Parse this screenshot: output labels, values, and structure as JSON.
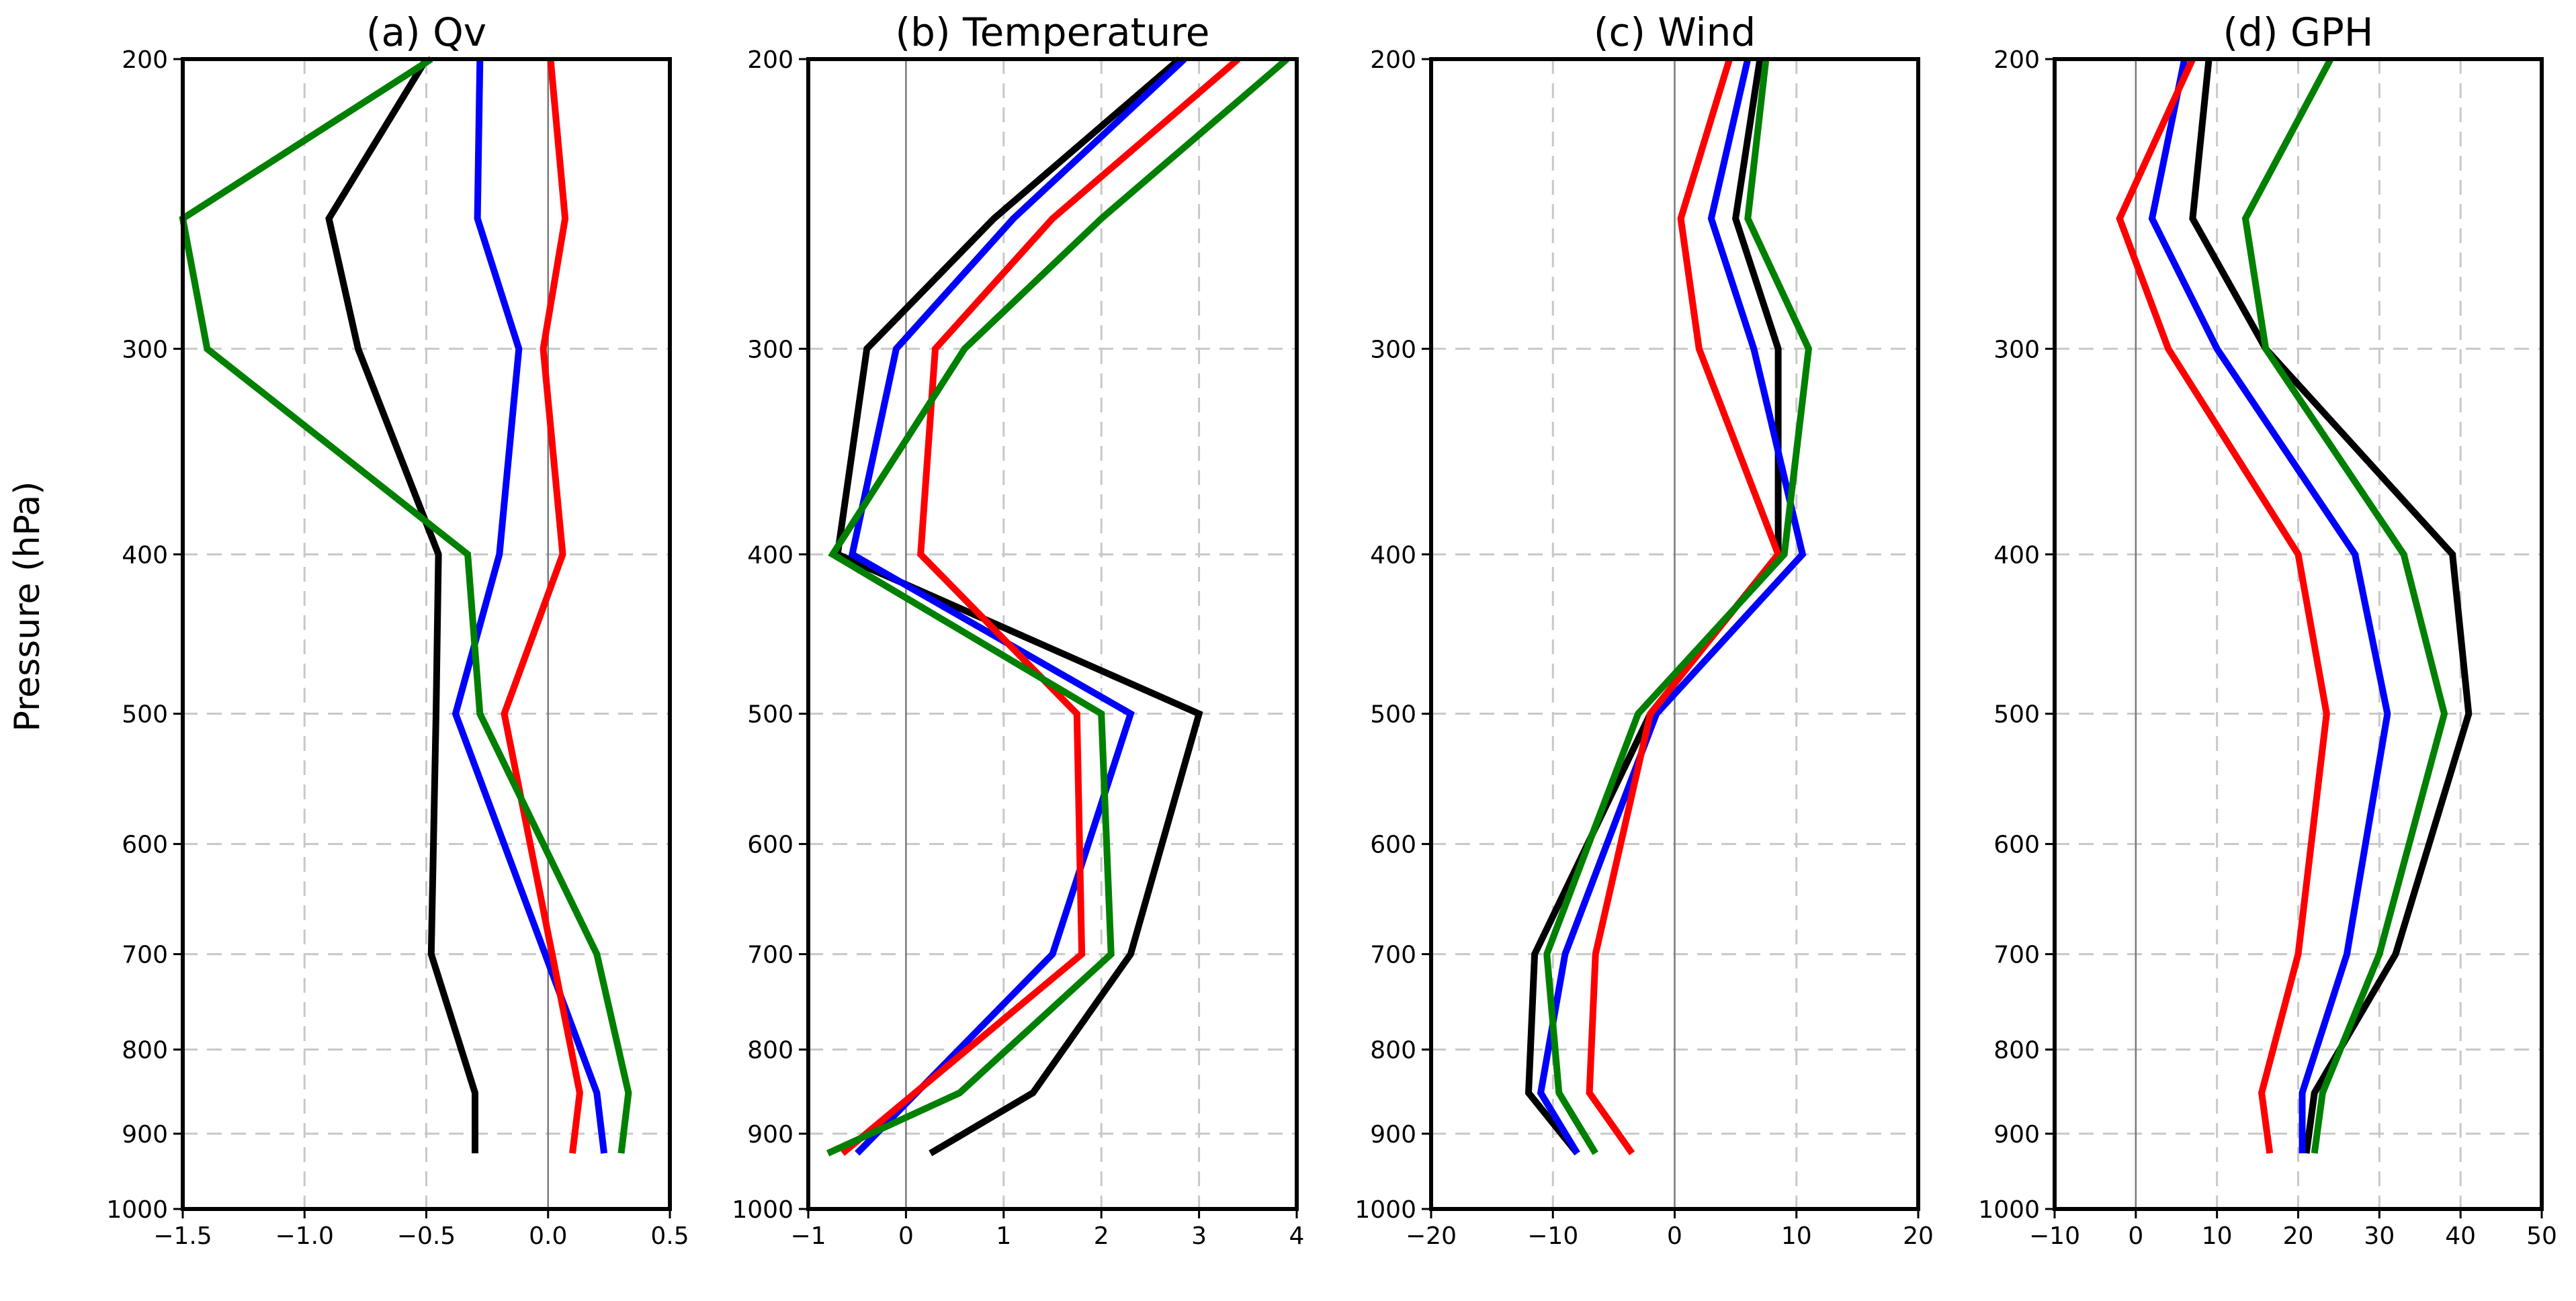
{
  "figure": {
    "ylabel": "Pressure (hPa)"
  },
  "series_colors": [
    "#000000",
    "#0000ff",
    "#ff0000",
    "#008000"
  ],
  "chart_data": [
    {
      "type": "line",
      "title": "(a) Qv",
      "xlabel": "",
      "ylabel": "Pressure (hPa)",
      "xlim": [
        -1.5,
        0.5
      ],
      "ylim": [
        200,
        1000
      ],
      "y_scale": "log",
      "y_inverted": true,
      "xticks": [
        -1.5,
        -1.0,
        -0.5,
        0.0,
        0.5
      ],
      "xtick_labels": [
        "−1.5",
        "−1.0",
        "−0.5",
        "0.0",
        "0.5"
      ],
      "yticks": [
        200,
        300,
        400,
        500,
        600,
        700,
        800,
        900,
        1000
      ],
      "zero_line": 0,
      "grid": true,
      "series": [
        {
          "name": "black",
          "color": "#000000",
          "x": [
            -0.5,
            -0.9,
            -0.78,
            -0.45,
            -0.46,
            -0.48,
            -0.3,
            -0.3
          ],
          "y": [
            200,
            250,
            300,
            400,
            500,
            700,
            850,
            925
          ]
        },
        {
          "name": "blue",
          "color": "#0000ff",
          "x": [
            -0.28,
            -0.29,
            -0.12,
            -0.2,
            -0.38,
            0.2,
            0.23
          ],
          "y": [
            200,
            250,
            300,
            400,
            500,
            850,
            925
          ]
        },
        {
          "name": "red",
          "color": "#ff0000",
          "x": [
            0.01,
            0.07,
            -0.02,
            0.06,
            -0.18,
            0.13,
            0.1
          ],
          "y": [
            200,
            250,
            300,
            400,
            500,
            850,
            925
          ]
        },
        {
          "name": "green",
          "color": "#008000",
          "x": [
            -0.48,
            -1.5,
            -1.4,
            -0.33,
            -0.28,
            0.2,
            0.33,
            0.3
          ],
          "y": [
            200,
            250,
            300,
            400,
            500,
            700,
            850,
            925
          ]
        }
      ]
    },
    {
      "type": "line",
      "title": "(b) Temperature",
      "xlabel": "",
      "xlim": [
        -1,
        4
      ],
      "ylim": [
        200,
        1000
      ],
      "y_scale": "log",
      "y_inverted": true,
      "xticks": [
        -1,
        0,
        1,
        2,
        3,
        4
      ],
      "xtick_labels": [
        "−1",
        "0",
        "1",
        "2",
        "3",
        "4"
      ],
      "yticks": [
        200,
        300,
        400,
        500,
        600,
        700,
        800,
        900,
        1000
      ],
      "zero_line": 0,
      "grid": true,
      "series": [
        {
          "name": "black",
          "color": "#000000",
          "x": [
            2.8,
            0.9,
            -0.4,
            -0.7,
            3.0,
            2.3,
            1.3,
            0.25
          ],
          "y": [
            200,
            250,
            300,
            400,
            500,
            700,
            850,
            925
          ]
        },
        {
          "name": "blue",
          "color": "#0000ff",
          "x": [
            2.85,
            1.1,
            -0.1,
            -0.55,
            2.3,
            1.5,
            -0.5
          ],
          "y": [
            200,
            250,
            300,
            400,
            500,
            700,
            925
          ]
        },
        {
          "name": "red",
          "color": "#ff0000",
          "x": [
            3.4,
            1.5,
            0.3,
            0.15,
            1.75,
            1.8,
            -0.65
          ],
          "y": [
            200,
            250,
            300,
            400,
            500,
            700,
            925
          ]
        },
        {
          "name": "green",
          "color": "#008000",
          "x": [
            3.9,
            2.0,
            0.6,
            -0.75,
            2.0,
            2.1,
            0.55,
            -0.8
          ],
          "y": [
            200,
            250,
            300,
            400,
            500,
            700,
            850,
            925
          ]
        }
      ]
    },
    {
      "type": "line",
      "title": "(c) Wind",
      "xlabel": "",
      "xlim": [
        -20,
        20
      ],
      "ylim": [
        200,
        1000
      ],
      "y_scale": "log",
      "y_inverted": true,
      "xticks": [
        -20,
        -10,
        0,
        10,
        20
      ],
      "xtick_labels": [
        "−20",
        "−10",
        "0",
        "10",
        "20"
      ],
      "yticks": [
        200,
        300,
        400,
        500,
        600,
        700,
        800,
        900,
        1000
      ],
      "zero_line": 0,
      "grid": true,
      "series": [
        {
          "name": "black",
          "color": "#000000",
          "x": [
            7.0,
            5.0,
            8.5,
            8.5,
            -2.0,
            -11.5,
            -12.0,
            -8.0
          ],
          "y": [
            200,
            250,
            300,
            400,
            500,
            700,
            850,
            925
          ]
        },
        {
          "name": "blue",
          "color": "#0000ff",
          "x": [
            6.0,
            3.0,
            6.5,
            10.5,
            -1.5,
            -9.0,
            -11.0,
            -8.0
          ],
          "y": [
            200,
            250,
            300,
            400,
            500,
            700,
            850,
            925
          ]
        },
        {
          "name": "red",
          "color": "#ff0000",
          "x": [
            4.5,
            0.5,
            2.0,
            8.5,
            -2.0,
            -6.5,
            -7.0,
            -3.5
          ],
          "y": [
            200,
            250,
            300,
            400,
            500,
            700,
            850,
            925
          ]
        },
        {
          "name": "green",
          "color": "#008000",
          "x": [
            7.5,
            6.0,
            11.0,
            9.0,
            -3.0,
            -10.5,
            -9.5,
            -6.5
          ],
          "y": [
            200,
            250,
            300,
            400,
            500,
            700,
            850,
            925
          ]
        }
      ]
    },
    {
      "type": "line",
      "title": "(d) GPH",
      "xlabel": "",
      "xlim": [
        -10,
        50
      ],
      "ylim": [
        200,
        1000
      ],
      "y_scale": "log",
      "y_inverted": true,
      "xticks": [
        -10,
        0,
        10,
        20,
        30,
        40,
        50
      ],
      "xtick_labels": [
        "−10",
        "0",
        "10",
        "20",
        "30",
        "40",
        "50"
      ],
      "yticks": [
        200,
        300,
        400,
        500,
        600,
        700,
        800,
        900,
        1000
      ],
      "zero_line": 0,
      "grid": true,
      "series": [
        {
          "name": "black",
          "color": "#000000",
          "x": [
            9.0,
            7.0,
            16.0,
            39.0,
            41.0,
            32.0,
            22.0,
            21.0
          ],
          "y": [
            200,
            250,
            300,
            400,
            500,
            700,
            850,
            925
          ]
        },
        {
          "name": "blue",
          "color": "#0000ff",
          "x": [
            6.0,
            2.0,
            10.0,
            27.0,
            31.0,
            26.0,
            20.5,
            20.5
          ],
          "y": [
            200,
            250,
            300,
            400,
            500,
            700,
            850,
            925
          ]
        },
        {
          "name": "red",
          "color": "#ff0000",
          "x": [
            7.0,
            -2.0,
            4.0,
            20.0,
            23.5,
            20.0,
            15.5,
            16.5
          ],
          "y": [
            200,
            250,
            300,
            400,
            500,
            700,
            850,
            925
          ]
        },
        {
          "name": "green",
          "color": "#008000",
          "x": [
            24.0,
            13.5,
            16.0,
            33.0,
            38.0,
            30.0,
            23.0,
            22.0
          ],
          "y": [
            200,
            250,
            300,
            400,
            500,
            700,
            850,
            925
          ]
        }
      ]
    }
  ]
}
